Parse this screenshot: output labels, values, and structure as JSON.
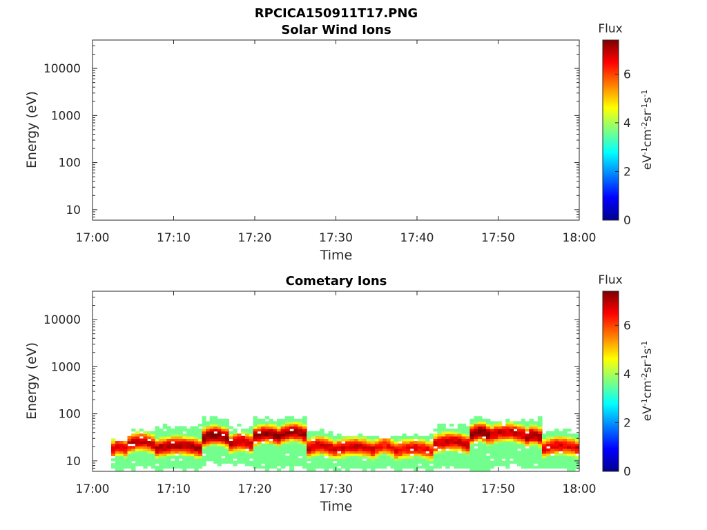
{
  "figure": {
    "title": "RPCICA150911T17.PNG"
  },
  "chart_data": [
    {
      "type": "heatmap",
      "title": "Solar Wind Ions",
      "xlabel": "Time",
      "ylabel": "Energy (eV)",
      "x_ticks": [
        "17:00",
        "17:10",
        "17:20",
        "17:30",
        "17:40",
        "17:50",
        "18:00"
      ],
      "x_range": [
        "17:00",
        "18:00"
      ],
      "y_scale": "log",
      "y_ticks": [
        "10",
        "100",
        "1000",
        "10000"
      ],
      "y_range": [
        6,
        40000
      ],
      "colorbar": {
        "label": "Flux",
        "units": "eV-1cm-2sr-1s-1",
        "ticks": [
          "0",
          "2",
          "4",
          "6"
        ],
        "range": [
          0,
          7.4
        ],
        "colormap": "jet"
      },
      "segments": []
    },
    {
      "type": "heatmap",
      "title": "Cometary Ions",
      "xlabel": "Time",
      "ylabel": "Energy (eV)",
      "x_ticks": [
        "17:00",
        "17:10",
        "17:20",
        "17:30",
        "17:40",
        "17:50",
        "18:00"
      ],
      "x_range": [
        "17:00",
        "18:00"
      ],
      "y_scale": "log",
      "y_ticks": [
        "10",
        "100",
        "1000",
        "10000"
      ],
      "y_range": [
        6,
        40000
      ],
      "colorbar": {
        "label": "Flux",
        "units": "eV-1cm-2sr-1s-1",
        "ticks": [
          "0",
          "2",
          "4",
          "6"
        ],
        "range": [
          0,
          7.4
        ],
        "colormap": "jet"
      },
      "segments": [
        {
          "t0": 2.3,
          "t1": 4.3,
          "lo": 6.5,
          "hi": 30,
          "peak": 17,
          "max": 6.6
        },
        {
          "t0": 4.3,
          "t1": 7.7,
          "lo": 7,
          "hi": 45,
          "peak": 22,
          "max": 6.9
        },
        {
          "t0": 7.7,
          "t1": 13.5,
          "lo": 6.5,
          "hi": 55,
          "peak": 18,
          "max": 7.1
        },
        {
          "t0": 13.5,
          "t1": 16.8,
          "lo": 9,
          "hi": 85,
          "peak": 30,
          "max": 7.4
        },
        {
          "t0": 16.8,
          "t1": 19.8,
          "lo": 8,
          "hi": 55,
          "peak": 22,
          "max": 6.9
        },
        {
          "t0": 19.8,
          "t1": 23.2,
          "lo": 7,
          "hi": 85,
          "peak": 32,
          "max": 7.3
        },
        {
          "t0": 23.2,
          "t1": 26.4,
          "lo": 7,
          "hi": 85,
          "peak": 35,
          "max": 7.2
        },
        {
          "t0": 26.4,
          "t1": 29.6,
          "lo": 6.5,
          "hi": 45,
          "peak": 18,
          "max": 6.9
        },
        {
          "t0": 29.6,
          "t1": 34.8,
          "lo": 6.5,
          "hi": 40,
          "peak": 17,
          "max": 6.8
        },
        {
          "t0": 34.8,
          "t1": 37.2,
          "lo": 7,
          "hi": 35,
          "peak": 18,
          "max": 6.4
        },
        {
          "t0": 37.2,
          "t1": 42.0,
          "lo": 6.5,
          "hi": 40,
          "peak": 16,
          "max": 6.6
        },
        {
          "t0": 42.0,
          "t1": 46.5,
          "lo": 7,
          "hi": 60,
          "peak": 22,
          "max": 6.9
        },
        {
          "t0": 46.5,
          "t1": 49.0,
          "lo": 6.5,
          "hi": 85,
          "peak": 35,
          "max": 7.4
        },
        {
          "t0": 49.0,
          "t1": 53.3,
          "lo": 8,
          "hi": 75,
          "peak": 35,
          "max": 6.9
        },
        {
          "t0": 53.3,
          "t1": 55.4,
          "lo": 7,
          "hi": 85,
          "peak": 30,
          "max": 7.2
        },
        {
          "t0": 55.4,
          "t1": 60.0,
          "lo": 7,
          "hi": 45,
          "peak": 18,
          "max": 6.7
        }
      ]
    }
  ]
}
